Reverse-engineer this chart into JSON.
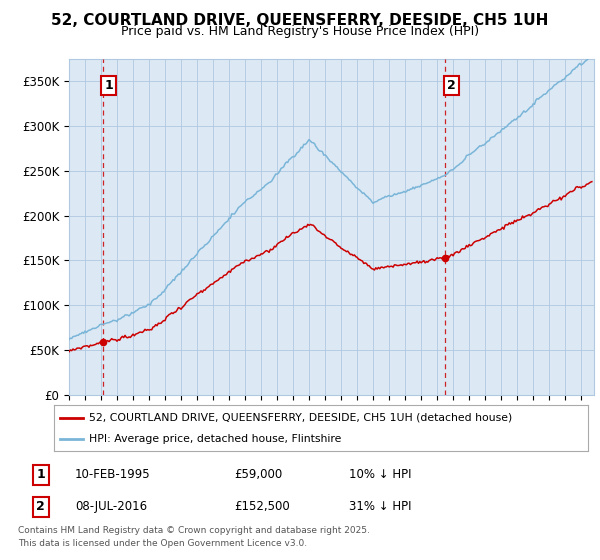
{
  "title": "52, COURTLAND DRIVE, QUEENSFERRY, DEESIDE, CH5 1UH",
  "subtitle": "Price paid vs. HM Land Registry's House Price Index (HPI)",
  "legend_entry1": "52, COURTLAND DRIVE, QUEENSFERRY, DEESIDE, CH5 1UH (detached house)",
  "legend_entry2": "HPI: Average price, detached house, Flintshire",
  "sale1_date": "10-FEB-1995",
  "sale1_price": "£59,000",
  "sale1_hpi": "10% ↓ HPI",
  "sale2_date": "08-JUL-2016",
  "sale2_price": "£152,500",
  "sale2_hpi": "31% ↓ HPI",
  "footnote": "Contains HM Land Registry data © Crown copyright and database right 2025.\nThis data is licensed under the Open Government Licence v3.0.",
  "sale1_year": 1995.12,
  "sale1_value": 59000,
  "sale2_year": 2016.52,
  "sale2_value": 152500,
  "property_color": "#cc0000",
  "hpi_color": "#7ab5d8",
  "vline_color": "#cc0000",
  "bg_color": "#dce9f5",
  "grid_color": "#b0c8e0",
  "ylim": [
    0,
    375000
  ],
  "yticks": [
    0,
    50000,
    100000,
    150000,
    200000,
    250000,
    300000,
    350000
  ],
  "ytick_labels": [
    "£0",
    "£50K",
    "£100K",
    "£150K",
    "£200K",
    "£250K",
    "£300K",
    "£350K"
  ],
  "xlim_start": 1993.0,
  "xlim_end": 2025.8
}
